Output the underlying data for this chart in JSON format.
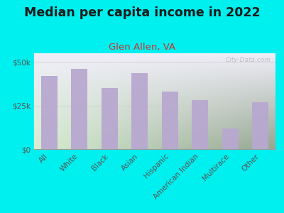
{
  "title": "Median per capita income in 2022",
  "subtitle": "Glen Allen, VA",
  "categories": [
    "All",
    "White",
    "Black",
    "Asian",
    "Hispanic",
    "American Indian",
    "Multirace",
    "Other"
  ],
  "values": [
    42000,
    46000,
    35000,
    43500,
    33000,
    28000,
    12000,
    27000
  ],
  "bar_color": "#b8a8d0",
  "background_outer": "#00efef",
  "background_inner_topleft": "#e8f0e0",
  "background_inner_topright": "#f0eef8",
  "background_inner_bottom": "#dcecd8",
  "title_color": "#1a1a1a",
  "subtitle_color": "#cc3333",
  "axis_label_color": "#555555",
  "ylim": [
    0,
    55000
  ],
  "yticks": [
    0,
    25000,
    50000
  ],
  "ytick_labels": [
    "$0",
    "$25k",
    "$50k"
  ],
  "watermark": "City-Data.com",
  "title_fontsize": 12.5,
  "subtitle_fontsize": 9.5,
  "tick_fontsize": 7.5
}
